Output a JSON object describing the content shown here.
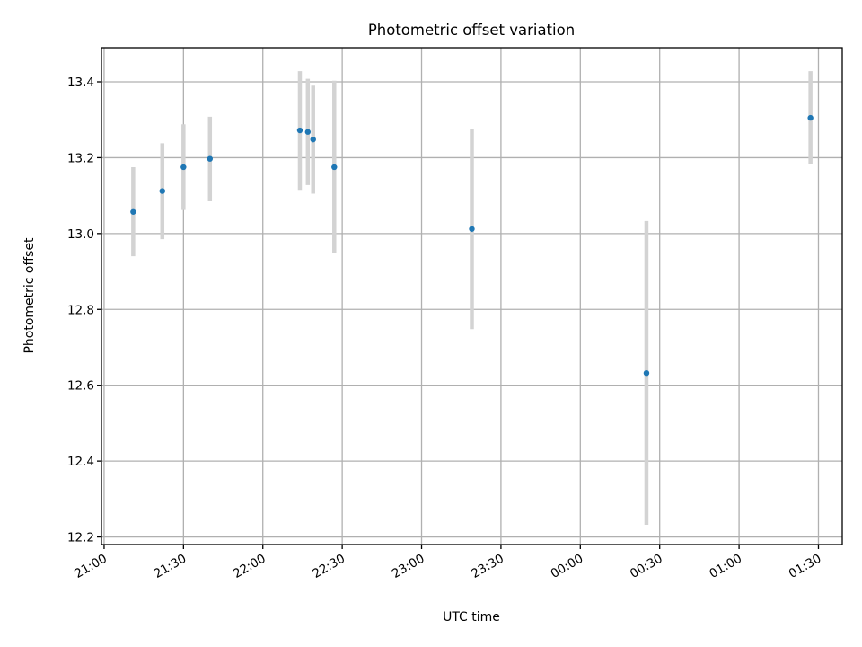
{
  "chart_data": {
    "type": "scatter",
    "title": "Photometric offset variation",
    "xlabel": "UTC time",
    "ylabel": "Photometric offset",
    "x_axis": {
      "ticks": [
        "21:00",
        "21:30",
        "22:00",
        "22:30",
        "23:00",
        "23:30",
        "00:00",
        "00:30",
        "01:00",
        "01:30"
      ],
      "range": [
        "20:59",
        "01:39"
      ]
    },
    "y_axis": {
      "ticks": [
        "12.2",
        "12.4",
        "12.6",
        "12.8",
        "13.0",
        "13.2",
        "13.4"
      ],
      "range": [
        12.18,
        13.49
      ]
    },
    "grid": true,
    "colors": {
      "points": "#1f77b4",
      "error_bars": "#d3d3d3",
      "grid": "#b0b0b0"
    },
    "points": [
      {
        "time": "21:11",
        "y": 13.057,
        "yerr_low": 12.94,
        "yerr_high": 13.175
      },
      {
        "time": "21:22",
        "y": 13.112,
        "yerr_low": 12.985,
        "yerr_high": 13.238
      },
      {
        "time": "21:30",
        "y": 13.175,
        "yerr_low": 13.062,
        "yerr_high": 13.288
      },
      {
        "time": "21:40",
        "y": 13.197,
        "yerr_low": 13.085,
        "yerr_high": 13.308
      },
      {
        "time": "22:14",
        "y": 13.272,
        "yerr_low": 13.115,
        "yerr_high": 13.428
      },
      {
        "time": "22:17",
        "y": 13.268,
        "yerr_low": 13.128,
        "yerr_high": 13.408
      },
      {
        "time": "22:19",
        "y": 13.248,
        "yerr_low": 13.105,
        "yerr_high": 13.39
      },
      {
        "time": "22:27",
        "y": 13.175,
        "yerr_low": 12.948,
        "yerr_high": 13.403
      },
      {
        "time": "23:19",
        "y": 13.012,
        "yerr_low": 12.748,
        "yerr_high": 13.275
      },
      {
        "time": "00:25",
        "y": 12.632,
        "yerr_low": 12.232,
        "yerr_high": 13.033
      },
      {
        "time": "01:27",
        "y": 13.305,
        "yerr_low": 13.182,
        "yerr_high": 13.428
      }
    ]
  }
}
